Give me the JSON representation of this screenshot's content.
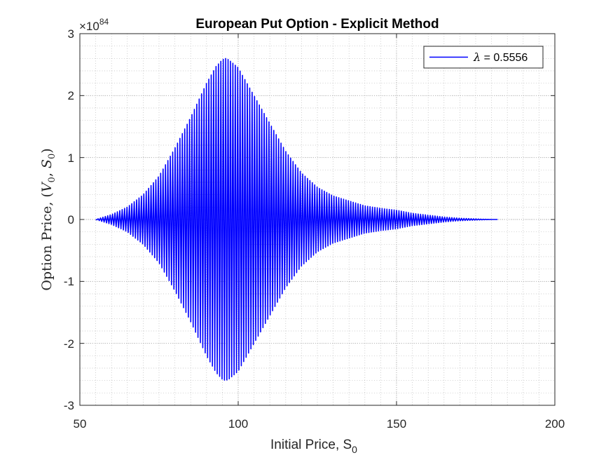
{
  "figure_background": "#ffffff",
  "chart_data": {
    "type": "line",
    "title": "European Put Option - Explicit Method",
    "xlabel": {
      "text": "Initial Price, S",
      "sub": "0"
    },
    "ylabel": {
      "prefix": "Option Price, (",
      "v": "V",
      "v_sub": "0",
      "sep": ", ",
      "s": "S",
      "s_sub": "0",
      "suffix": ")"
    },
    "xlim": [
      50,
      200
    ],
    "ylim": [
      -3,
      3
    ],
    "xticks": [
      50,
      100,
      150,
      200
    ],
    "xtick_labels": [
      "50",
      "100",
      "150",
      "200"
    ],
    "yticks": [
      -3,
      -2,
      -1,
      0,
      1,
      2,
      3
    ],
    "ytick_labels": [
      "-3",
      "-2",
      "-1",
      "0",
      "1",
      "2",
      "3"
    ],
    "y_exponent": {
      "base": "×10",
      "power": "84"
    },
    "grid": true,
    "minor_grid": true,
    "legend_position": "top-right",
    "color": "#0000ff",
    "series": [
      {
        "name": "λ = 0.5556",
        "name_symbol": "λ",
        "name_value": " = 0.5556",
        "color": "#0000ff",
        "x_range": [
          55,
          182
        ],
        "oscillation_period": 0.76,
        "envelope": [
          [
            55,
            0
          ],
          [
            60,
            0.08
          ],
          [
            65,
            0.2
          ],
          [
            70,
            0.4
          ],
          [
            75,
            0.7
          ],
          [
            80,
            1.15
          ],
          [
            85,
            1.65
          ],
          [
            90,
            2.2
          ],
          [
            93,
            2.47
          ],
          [
            95,
            2.58
          ],
          [
            96,
            2.6
          ],
          [
            97,
            2.58
          ],
          [
            100,
            2.45
          ],
          [
            105,
            2.0
          ],
          [
            110,
            1.55
          ],
          [
            115,
            1.1
          ],
          [
            120,
            0.75
          ],
          [
            125,
            0.52
          ],
          [
            130,
            0.38
          ],
          [
            135,
            0.3
          ],
          [
            140,
            0.22
          ],
          [
            145,
            0.18
          ],
          [
            150,
            0.15
          ],
          [
            155,
            0.1
          ],
          [
            160,
            0.07
          ],
          [
            165,
            0.04
          ],
          [
            170,
            0.02
          ],
          [
            175,
            0.01
          ],
          [
            180,
            0.0
          ],
          [
            182,
            0
          ]
        ]
      }
    ]
  }
}
